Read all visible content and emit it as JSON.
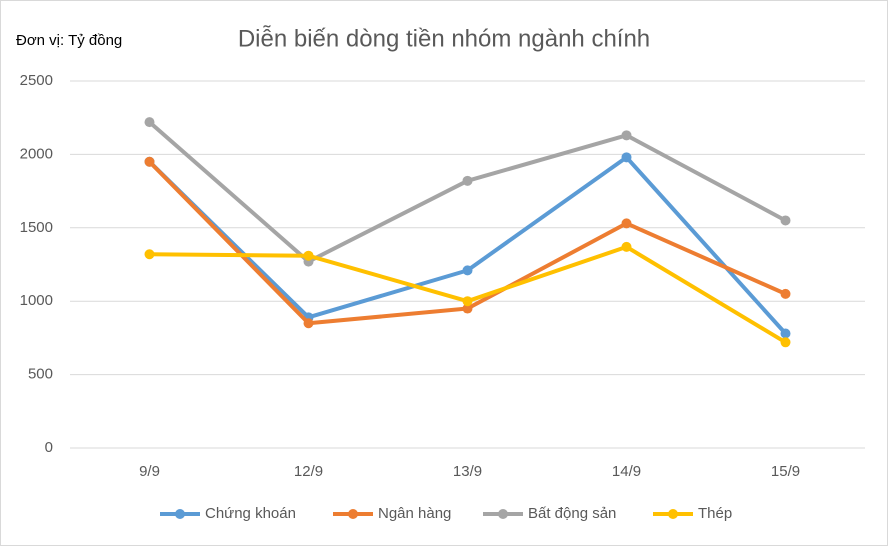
{
  "chart_data": {
    "type": "line",
    "title": "Diễn biến dòng tiền nhóm ngành chính",
    "unit_label": "Đơn vị: Tỷ đồng",
    "categories": [
      "9/9",
      "12/9",
      "13/9",
      "14/9",
      "15/9"
    ],
    "series": [
      {
        "name": "Chứng khoán",
        "color": "#5b9bd5",
        "values": [
          1950,
          890,
          1210,
          1980,
          780
        ]
      },
      {
        "name": "Ngân hàng",
        "color": "#ed7d31",
        "values": [
          1950,
          850,
          950,
          1530,
          1050
        ]
      },
      {
        "name": "Bất động sản",
        "color": "#a5a5a5",
        "values": [
          2220,
          1270,
          1820,
          2130,
          1550
        ]
      },
      {
        "name": "Thép",
        "color": "#ffc000",
        "values": [
          1320,
          1310,
          1000,
          1370,
          720
        ]
      }
    ],
    "ylim": [
      0,
      2500
    ],
    "yticks": [
      0,
      500,
      1000,
      1500,
      2000,
      2500
    ],
    "grid": true,
    "legend": "bottom"
  }
}
